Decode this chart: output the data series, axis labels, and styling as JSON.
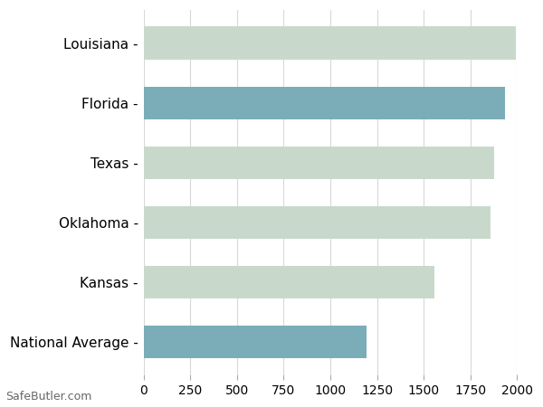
{
  "categories": [
    "Louisiana",
    "Florida",
    "Texas",
    "Oklahoma",
    "Kansas",
    "National Average"
  ],
  "values": [
    1992,
    1933,
    1878,
    1858,
    1559,
    1193
  ],
  "colors": [
    "#c8d9cc",
    "#7aadb8",
    "#c8d9cc",
    "#c8d9cc",
    "#c8d9cc",
    "#7aadb8"
  ],
  "xlim": [
    0,
    2000
  ],
  "xticks": [
    0,
    250,
    500,
    750,
    1000,
    1250,
    1500,
    1750,
    2000
  ],
  "background_color": "#ffffff",
  "grid_color": "#d8d8d8",
  "label_fontsize": 11,
  "tick_fontsize": 10,
  "bar_height": 0.55,
  "watermark": "SafeButler.com"
}
